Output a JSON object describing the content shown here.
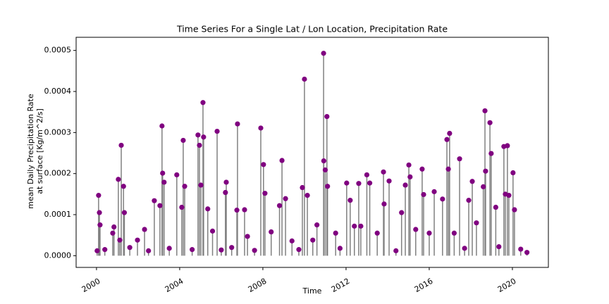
{
  "chart_data": {
    "type": "stem",
    "title": "Time Series For a Single Lat / Lon Location, Precipitation Rate",
    "xlabel": "Time",
    "ylabel": [
      "mean Daily Precipitation Rate",
      "at surface [Kg/m^2/s]"
    ],
    "stem_color": "#808080",
    "marker_color": "#800080",
    "xlim": [
      1999.02,
      2021.73
    ],
    "xticks": [
      2000,
      2004,
      2008,
      2012,
      2016,
      2020
    ],
    "ylim": [
      -2.85e-05,
      0.000532
    ],
    "yticks": [
      {
        "value": 0,
        "label": "0.0000"
      },
      {
        "value": 0.0001,
        "label": "0.0001"
      },
      {
        "value": 0.0002,
        "label": "0.0002"
      },
      {
        "value": 0.0003,
        "label": "0.0003"
      },
      {
        "value": 0.0004,
        "label": "0.0004"
      },
      {
        "value": 0.0005,
        "label": "0.0005"
      }
    ],
    "x": [
      2000.03,
      2000.1,
      2000.14,
      2000.17,
      2000.4,
      2000.78,
      2000.84,
      2001.05,
      2001.12,
      2001.19,
      2001.3,
      2001.34,
      2001.6,
      2001.97,
      2002.31,
      2002.5,
      2002.78,
      2003.05,
      2003.15,
      2003.18,
      2003.25,
      2003.5,
      2003.86,
      2004.1,
      2004.17,
      2004.24,
      2004.6,
      2004.88,
      2004.95,
      2005.02,
      2005.12,
      2005.15,
      2005.35,
      2005.58,
      2005.8,
      2006.0,
      2006.2,
      2006.24,
      2006.5,
      2006.78,
      2006.75,
      2007.12,
      2007.26,
      2007.6,
      2007.9,
      2008.03,
      2008.1,
      2008.4,
      2008.8,
      2008.92,
      2009.09,
      2009.4,
      2009.73,
      2009.9,
      2010.0,
      2010.14,
      2010.4,
      2010.6,
      2010.92,
      2010.93,
      2011.0,
      2011.08,
      2011.11,
      2011.5,
      2011.71,
      2012.03,
      2012.2,
      2012.4,
      2012.61,
      2012.71,
      2013.0,
      2013.14,
      2013.5,
      2013.8,
      2013.83,
      2014.07,
      2014.4,
      2014.67,
      2014.85,
      2015.02,
      2015.08,
      2015.35,
      2015.66,
      2015.73,
      2016.0,
      2016.24,
      2016.64,
      2016.85,
      2016.92,
      2016.98,
      2017.2,
      2017.46,
      2017.7,
      2017.9,
      2018.07,
      2018.27,
      2018.6,
      2018.68,
      2018.71,
      2018.92,
      2018.98,
      2019.2,
      2019.35,
      2019.59,
      2019.66,
      2019.76,
      2019.83,
      2020.03,
      2020.1,
      2020.4,
      2020.7
    ],
    "values": [
      1.2e-05,
      0.000147,
      0.000105,
      7.5e-05,
      1.5e-05,
      5.5e-05,
      7e-05,
      0.000186,
      3.8e-05,
      0.000269,
      0.000169,
      0.000105,
      2e-05,
      3.8e-05,
      6.4e-05,
      1.2e-05,
      0.000134,
      0.000122,
      0.000316,
      0.000201,
      0.000179,
      1.8e-05,
      0.000197,
      0.000118,
      0.000281,
      0.000169,
      1.5e-05,
      0.000294,
      0.000269,
      0.000172,
      0.000373,
      0.000289,
      0.000114,
      6e-05,
      0.000303,
      1.4e-05,
      0.000154,
      0.000179,
      2e-05,
      0.000321,
      0.000111,
      0.000112,
      4.7e-05,
      1.3e-05,
      0.000311,
      0.000222,
      0.000152,
      5.8e-05,
      0.000122,
      0.000232,
      0.000139,
      3.6e-05,
      1.5e-05,
      0.000166,
      0.00043,
      0.000147,
      3.8e-05,
      7.5e-05,
      0.000493,
      0.000231,
      0.000209,
      0.000339,
      0.000169,
      5.5e-05,
      1.8e-05,
      0.000177,
      0.000135,
      7.2e-05,
      0.000176,
      7.2e-05,
      0.000197,
      0.000177,
      5.5e-05,
      0.000204,
      0.000126,
      0.000182,
      1.2e-05,
      0.000105,
      0.000172,
      0.000221,
      0.000192,
      6.4e-05,
      0.000211,
      0.000149,
      5.5e-05,
      0.000156,
      0.000138,
      0.000283,
      0.000211,
      0.000298,
      5.5e-05,
      0.000236,
      1.8e-05,
      0.000135,
      0.000181,
      8e-05,
      0.000168,
      0.000353,
      0.000206,
      0.000324,
      0.000249,
      0.000118,
      2.2e-05,
      0.000266,
      0.00015,
      0.000268,
      0.000147,
      0.000202,
      0.000112,
      1.6e-05,
      8e-06
    ]
  }
}
